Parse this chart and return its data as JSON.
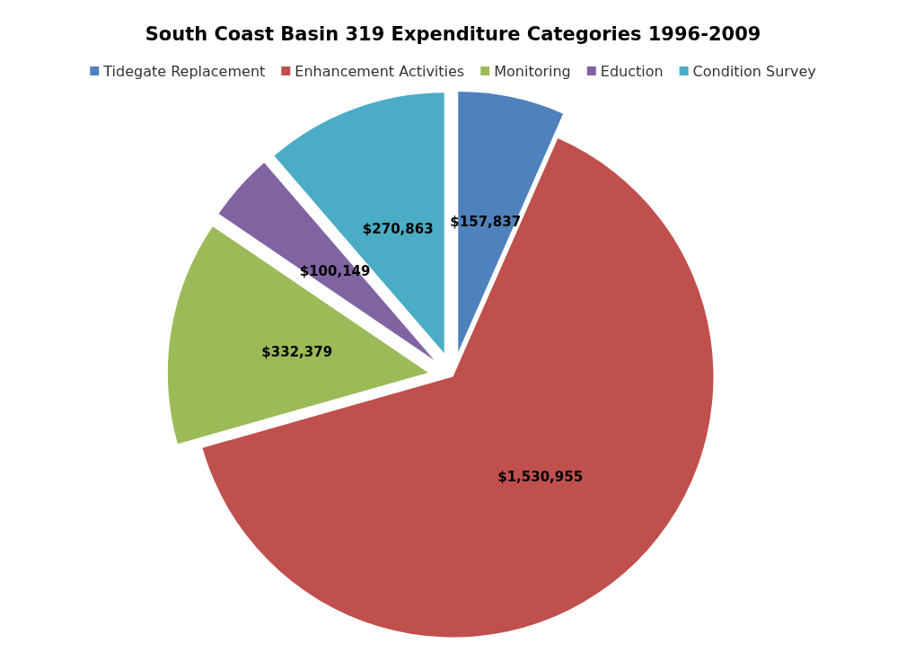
{
  "chart_data": {
    "type": "pie",
    "title": "South Coast Basin 319 Expenditure Categories 1996-2009",
    "categories": [
      "Tidegate Replacement",
      "Enhancement Activities",
      "Monitoring",
      "Eduction",
      "Condition Survey"
    ],
    "values": [
      157837,
      1530955,
      332379,
      100149,
      270863
    ],
    "value_labels": [
      "$157,837",
      "$1,530,955",
      "$332,379",
      "$100,149",
      "$270,863"
    ],
    "colors": [
      "#4f81bd",
      "#c0504d",
      "#9bbb59",
      "#8064a2",
      "#4bacc6"
    ],
    "legend": "top"
  }
}
